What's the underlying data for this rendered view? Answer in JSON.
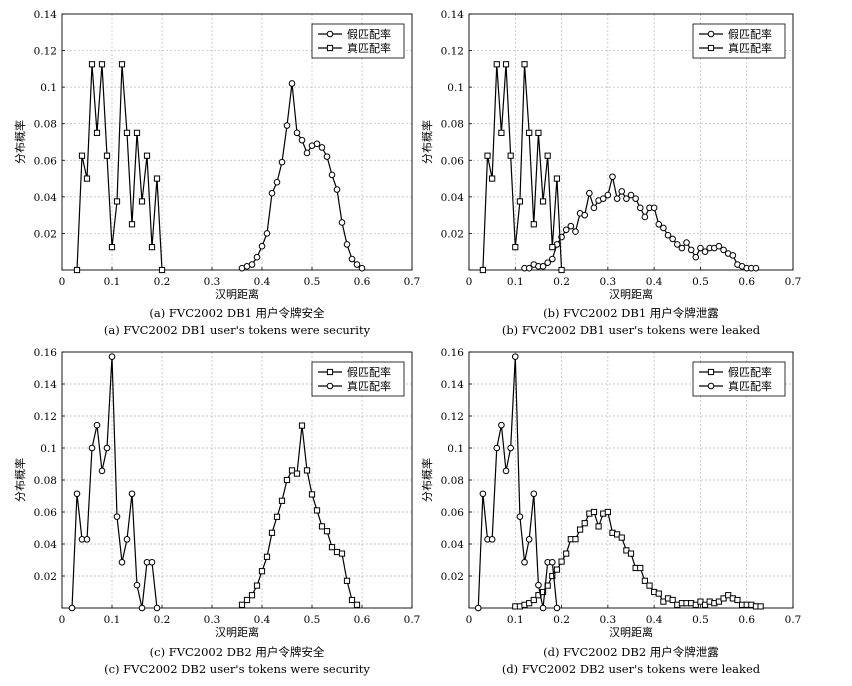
{
  "panels": [
    {
      "id": "a",
      "caption_cn": "(a) FVC2002 DB1 用户令牌安全",
      "caption_en": "(a) FVC2002 DB1 user's tokens were security",
      "xlabel": "汉明距离",
      "ylabel": "分布概率",
      "xlim": [
        0,
        0.7
      ],
      "ylim": [
        0,
        0.14
      ],
      "xticks": [
        "0",
        "0.1",
        "0.2",
        "0.3",
        "0.4",
        "0.5",
        "0.6",
        "0.7"
      ],
      "yticks": [
        "0.02",
        "0.04",
        "0.06",
        "0.08",
        "0.1",
        "0.12",
        "0.14"
      ],
      "legend": [
        {
          "label": "假匹配率",
          "marker": "circle"
        },
        {
          "label": "真匹配率",
          "marker": "square"
        }
      ]
    },
    {
      "id": "b",
      "caption_cn": "(b) FVC2002 DB1 用户令牌泄露",
      "caption_en": "(b) FVC2002 DB1 user's tokens were leaked",
      "xlabel": "汉明距离",
      "ylabel": "分布概率",
      "xlim": [
        0,
        0.7
      ],
      "ylim": [
        0,
        0.14
      ],
      "xticks": [
        "0",
        "0.1",
        "0.2",
        "0.3",
        "0.4",
        "0.5",
        "0.6",
        "0.7"
      ],
      "yticks": [
        "0.02",
        "0.04",
        "0.06",
        "0.08",
        "0.1",
        "0.12",
        "0.14"
      ],
      "legend": [
        {
          "label": "假匹配率",
          "marker": "circle"
        },
        {
          "label": "真匹配率",
          "marker": "square"
        }
      ]
    },
    {
      "id": "c",
      "caption_cn": "(c) FVC2002 DB2 用户令牌安全",
      "caption_en": "(c) FVC2002 DB2 user's tokens were security",
      "xlabel": "汉明距离",
      "ylabel": "分布概率",
      "xlim": [
        0,
        0.7
      ],
      "ylim": [
        0,
        0.16
      ],
      "xticks": [
        "0",
        "0.1",
        "0.2",
        "0.3",
        "0.4",
        "0.5",
        "0.6",
        "0.7"
      ],
      "yticks": [
        "0.02",
        "0.04",
        "0.06",
        "0.08",
        "0.1",
        "0.12",
        "0.14",
        "0.16"
      ],
      "legend": [
        {
          "label": "假匹配率",
          "marker": "square"
        },
        {
          "label": "真匹配率",
          "marker": "circle"
        }
      ]
    },
    {
      "id": "d",
      "caption_cn": "(d) FVC2002 DB2 用户令牌泄露",
      "caption_en": "(d) FVC2002 DB2 user's tokens were leaked",
      "xlabel": "汉明距离",
      "ylabel": "分布概率",
      "xlim": [
        0,
        0.7
      ],
      "ylim": [
        0,
        0.16
      ],
      "xticks": [
        "0",
        "0.1",
        "0.2",
        "0.3",
        "0.4",
        "0.5",
        "0.6",
        "0.7"
      ],
      "yticks": [
        "0.02",
        "0.04",
        "0.06",
        "0.08",
        "0.1",
        "0.12",
        "0.14",
        "0.16"
      ],
      "legend": [
        {
          "label": "假匹配率",
          "marker": "square"
        },
        {
          "label": "真匹配率",
          "marker": "circle"
        }
      ]
    }
  ],
  "chart_data": [
    {
      "type": "line",
      "panel": "a",
      "xlabel": "汉明距离",
      "ylabel": "分布概率",
      "xlim": [
        0,
        0.7
      ],
      "ylim": [
        0,
        0.14
      ],
      "grid": true,
      "legend_position": "top-right",
      "series": [
        {
          "name": "假匹配率",
          "marker": "circle",
          "x": [
            0.36,
            0.37,
            0.38,
            0.39,
            0.4,
            0.41,
            0.42,
            0.43,
            0.44,
            0.45,
            0.46,
            0.47,
            0.48,
            0.49,
            0.5,
            0.51,
            0.52,
            0.53,
            0.54,
            0.55,
            0.56,
            0.57,
            0.58,
            0.59,
            0.6
          ],
          "y": [
            0.001,
            0.002,
            0.003,
            0.007,
            0.013,
            0.02,
            0.042,
            0.048,
            0.059,
            0.079,
            0.102,
            0.075,
            0.071,
            0.064,
            0.068,
            0.069,
            0.067,
            0.062,
            0.052,
            0.044,
            0.026,
            0.014,
            0.006,
            0.003,
            0.001
          ]
        },
        {
          "name": "真匹配率",
          "marker": "square",
          "x": [
            0.03,
            0.04,
            0.05,
            0.06,
            0.07,
            0.08,
            0.09,
            0.1,
            0.11,
            0.12,
            0.13,
            0.14,
            0.15,
            0.16,
            0.17,
            0.18,
            0.19,
            0.2
          ],
          "y": [
            0.0,
            0.0625,
            0.05,
            0.1125,
            0.075,
            0.1125,
            0.0625,
            0.0125,
            0.0375,
            0.1125,
            0.075,
            0.025,
            0.075,
            0.0375,
            0.0625,
            0.0125,
            0.05,
            0.0
          ]
        }
      ]
    },
    {
      "type": "line",
      "panel": "b",
      "xlabel": "汉明距离",
      "ylabel": "分布概率",
      "xlim": [
        0,
        0.7
      ],
      "ylim": [
        0,
        0.14
      ],
      "grid": true,
      "legend_position": "top-right",
      "series": [
        {
          "name": "假匹配率",
          "marker": "circle",
          "x": [
            0.12,
            0.13,
            0.14,
            0.15,
            0.16,
            0.17,
            0.18,
            0.19,
            0.2,
            0.21,
            0.22,
            0.23,
            0.24,
            0.25,
            0.26,
            0.27,
            0.28,
            0.29,
            0.3,
            0.31,
            0.32,
            0.33,
            0.34,
            0.35,
            0.36,
            0.37,
            0.38,
            0.39,
            0.4,
            0.41,
            0.42,
            0.43,
            0.44,
            0.45,
            0.46,
            0.47,
            0.48,
            0.49,
            0.5,
            0.51,
            0.52,
            0.53,
            0.54,
            0.55,
            0.56,
            0.57,
            0.58,
            0.59,
            0.6,
            0.61,
            0.62
          ],
          "y": [
            0.001,
            0.001,
            0.003,
            0.002,
            0.002,
            0.004,
            0.006,
            0.014,
            0.018,
            0.022,
            0.024,
            0.021,
            0.031,
            0.03,
            0.042,
            0.034,
            0.038,
            0.039,
            0.041,
            0.051,
            0.039,
            0.043,
            0.039,
            0.041,
            0.039,
            0.034,
            0.029,
            0.034,
            0.034,
            0.025,
            0.023,
            0.019,
            0.017,
            0.014,
            0.012,
            0.015,
            0.011,
            0.007,
            0.012,
            0.01,
            0.012,
            0.012,
            0.013,
            0.011,
            0.009,
            0.008,
            0.003,
            0.002,
            0.001,
            0.001,
            0.001
          ]
        },
        {
          "name": "真匹配率",
          "marker": "square",
          "x": [
            0.03,
            0.04,
            0.05,
            0.06,
            0.07,
            0.08,
            0.09,
            0.1,
            0.11,
            0.12,
            0.13,
            0.14,
            0.15,
            0.16,
            0.17,
            0.18,
            0.19,
            0.2
          ],
          "y": [
            0.0,
            0.0625,
            0.05,
            0.1125,
            0.075,
            0.1125,
            0.0625,
            0.0125,
            0.0375,
            0.1125,
            0.075,
            0.025,
            0.075,
            0.0375,
            0.0625,
            0.0125,
            0.05,
            0.0
          ]
        }
      ]
    },
    {
      "type": "line",
      "panel": "c",
      "xlabel": "汉明距离",
      "ylabel": "分布概率",
      "xlim": [
        0,
        0.7
      ],
      "ylim": [
        0,
        0.16
      ],
      "grid": true,
      "legend_position": "top-right",
      "series": [
        {
          "name": "假匹配率",
          "marker": "square",
          "x": [
            0.36,
            0.37,
            0.38,
            0.39,
            0.4,
            0.41,
            0.42,
            0.43,
            0.44,
            0.45,
            0.46,
            0.47,
            0.48,
            0.49,
            0.5,
            0.51,
            0.52,
            0.53,
            0.54,
            0.55,
            0.56,
            0.57,
            0.58,
            0.59
          ],
          "y": [
            0.002,
            0.005,
            0.008,
            0.014,
            0.023,
            0.032,
            0.047,
            0.057,
            0.067,
            0.08,
            0.086,
            0.084,
            0.114,
            0.086,
            0.071,
            0.061,
            0.051,
            0.048,
            0.038,
            0.035,
            0.034,
            0.017,
            0.005,
            0.002
          ]
        },
        {
          "name": "真匹配率",
          "marker": "circle",
          "x": [
            0.02,
            0.03,
            0.04,
            0.05,
            0.06,
            0.07,
            0.08,
            0.09,
            0.1,
            0.11,
            0.12,
            0.13,
            0.14,
            0.15,
            0.16,
            0.17,
            0.18,
            0.19
          ],
          "y": [
            0.0,
            0.0714,
            0.0429,
            0.0429,
            0.1,
            0.1143,
            0.0857,
            0.1,
            0.1571,
            0.0571,
            0.0286,
            0.0429,
            0.0714,
            0.0143,
            0.0,
            0.0286,
            0.0286,
            0.0
          ]
        }
      ]
    },
    {
      "type": "line",
      "panel": "d",
      "xlabel": "汉明距离",
      "ylabel": "分布概率",
      "xlim": [
        0,
        0.7
      ],
      "ylim": [
        0,
        0.16
      ],
      "grid": true,
      "legend_position": "top-right",
      "series": [
        {
          "name": "假匹配率",
          "marker": "square",
          "x": [
            0.1,
            0.11,
            0.12,
            0.13,
            0.14,
            0.15,
            0.16,
            0.17,
            0.18,
            0.19,
            0.2,
            0.21,
            0.22,
            0.23,
            0.24,
            0.25,
            0.26,
            0.27,
            0.28,
            0.29,
            0.3,
            0.31,
            0.32,
            0.33,
            0.34,
            0.35,
            0.36,
            0.37,
            0.38,
            0.39,
            0.4,
            0.41,
            0.42,
            0.43,
            0.44,
            0.45,
            0.46,
            0.47,
            0.48,
            0.49,
            0.5,
            0.51,
            0.52,
            0.53,
            0.54,
            0.55,
            0.56,
            0.57,
            0.58,
            0.59,
            0.6,
            0.61,
            0.62,
            0.63
          ],
          "y": [
            0.001,
            0.001,
            0.002,
            0.003,
            0.005,
            0.008,
            0.01,
            0.014,
            0.02,
            0.024,
            0.029,
            0.034,
            0.043,
            0.043,
            0.049,
            0.053,
            0.059,
            0.06,
            0.051,
            0.059,
            0.06,
            0.047,
            0.046,
            0.044,
            0.036,
            0.034,
            0.025,
            0.025,
            0.017,
            0.014,
            0.01,
            0.009,
            0.004,
            0.006,
            0.005,
            0.002,
            0.003,
            0.003,
            0.003,
            0.002,
            0.004,
            0.002,
            0.004,
            0.003,
            0.004,
            0.006,
            0.008,
            0.006,
            0.005,
            0.002,
            0.002,
            0.002,
            0.001,
            0.001
          ]
        },
        {
          "name": "真匹配率",
          "marker": "circle",
          "x": [
            0.02,
            0.03,
            0.04,
            0.05,
            0.06,
            0.07,
            0.08,
            0.09,
            0.1,
            0.11,
            0.12,
            0.13,
            0.14,
            0.15,
            0.16,
            0.17,
            0.18,
            0.19
          ],
          "y": [
            0.0,
            0.0714,
            0.0429,
            0.0429,
            0.1,
            0.1143,
            0.0857,
            0.1,
            0.1571,
            0.0571,
            0.0286,
            0.0429,
            0.0714,
            0.0143,
            0.0,
            0.0286,
            0.0286,
            0.0
          ]
        }
      ]
    }
  ]
}
